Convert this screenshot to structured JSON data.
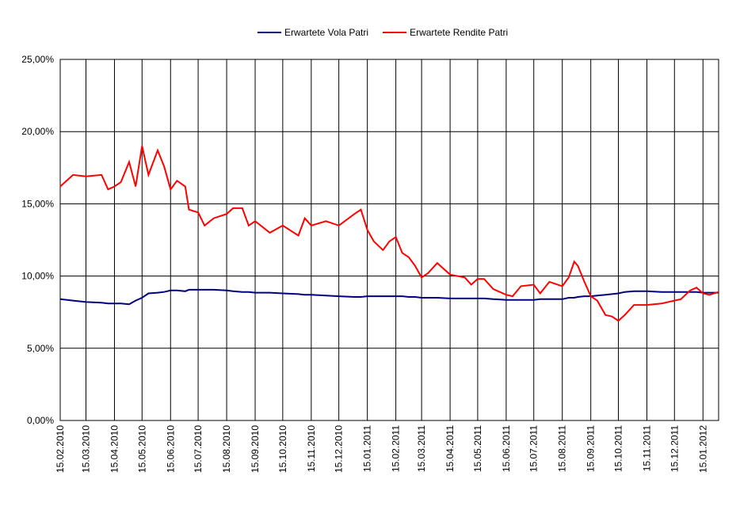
{
  "chart_data": {
    "type": "line",
    "x": [
      "15.02.2010",
      "01.03.2010",
      "15.03.2010",
      "01.04.2010",
      "08.04.2010",
      "15.04.2010",
      "22.04.2010",
      "01.05.2010",
      "08.05.2010",
      "15.05.2010",
      "22.05.2010",
      "01.06.2010",
      "08.06.2010",
      "15.06.2010",
      "22.06.2010",
      "01.07.2010",
      "05.07.2010",
      "15.07.2010",
      "22.07.2010",
      "01.08.2010",
      "15.08.2010",
      "22.08.2010",
      "01.09.2010",
      "08.09.2010",
      "15.09.2010",
      "01.10.2010",
      "15.10.2010",
      "01.11.2010",
      "08.11.2010",
      "15.11.2010",
      "01.12.2010",
      "15.12.2010",
      "01.01.2011",
      "08.01.2011",
      "15.01.2011",
      "22.01.2011",
      "01.02.2011",
      "08.02.2011",
      "15.02.2011",
      "22.02.2011",
      "01.03.2011",
      "08.03.2011",
      "15.03.2011",
      "22.03.2011",
      "01.04.2011",
      "15.04.2011",
      "01.05.2011",
      "08.05.2011",
      "15.05.2011",
      "22.05.2011",
      "01.06.2011",
      "15.06.2011",
      "22.06.2011",
      "01.07.2011",
      "15.07.2011",
      "22.07.2011",
      "01.08.2011",
      "15.08.2011",
      "22.08.2011",
      "28.08.2011",
      "01.09.2011",
      "08.09.2011",
      "15.09.2011",
      "22.09.2011",
      "01.10.2011",
      "08.10.2011",
      "15.10.2011",
      "22.10.2011",
      "01.11.2011",
      "15.11.2011",
      "01.12.2011",
      "15.12.2011",
      "22.12.2011",
      "01.01.2012",
      "08.01.2012",
      "15.01.2012",
      "22.01.2012",
      "01.02.2012"
    ],
    "series": [
      {
        "name": "Erwartete Vola Patri",
        "color": "#000080",
        "values": [
          8.4,
          8.3,
          8.2,
          8.15,
          8.1,
          8.1,
          8.1,
          8.05,
          8.3,
          8.5,
          8.8,
          8.85,
          8.9,
          9.0,
          9.0,
          8.95,
          9.05,
          9.05,
          9.05,
          9.05,
          9.0,
          8.95,
          8.9,
          8.9,
          8.85,
          8.85,
          8.8,
          8.75,
          8.7,
          8.7,
          8.65,
          8.6,
          8.55,
          8.55,
          8.6,
          8.6,
          8.6,
          8.6,
          8.6,
          8.6,
          8.55,
          8.55,
          8.5,
          8.5,
          8.5,
          8.45,
          8.45,
          8.45,
          8.45,
          8.45,
          8.4,
          8.35,
          8.35,
          8.35,
          8.35,
          8.4,
          8.4,
          8.4,
          8.5,
          8.5,
          8.55,
          8.6,
          8.6,
          8.65,
          8.7,
          8.75,
          8.8,
          8.9,
          8.95,
          8.95,
          8.9,
          8.9,
          8.9,
          8.9,
          8.9,
          8.85,
          8.85,
          8.85
        ]
      },
      {
        "name": "Erwartete Rendite Patri",
        "color": "#ff0000",
        "values": [
          16.2,
          17.0,
          16.9,
          17.0,
          16.0,
          16.2,
          16.5,
          17.9,
          16.2,
          19.0,
          17.0,
          18.7,
          17.6,
          16.0,
          16.6,
          16.2,
          14.6,
          14.4,
          13.5,
          14.0,
          14.3,
          14.7,
          14.7,
          13.5,
          13.8,
          13.0,
          13.5,
          12.8,
          14.0,
          13.5,
          13.8,
          13.5,
          14.3,
          14.6,
          13.2,
          12.4,
          11.8,
          12.4,
          12.7,
          11.6,
          11.3,
          10.7,
          9.9,
          10.2,
          10.9,
          10.1,
          9.9,
          9.4,
          9.8,
          9.8,
          9.1,
          8.7,
          8.6,
          9.3,
          9.4,
          8.8,
          9.6,
          9.3,
          9.9,
          11.0,
          10.7,
          9.6,
          8.6,
          8.3,
          7.3,
          7.2,
          6.9,
          7.3,
          8.0,
          8.0,
          8.1,
          8.3,
          8.4,
          9.0,
          9.2,
          8.8,
          8.7,
          8.9
        ]
      }
    ],
    "xlim": [
      "15.02.2010",
      "01.02.2012"
    ],
    "xticks": [
      "15.02.2010",
      "15.03.2010",
      "15.04.2010",
      "15.05.2010",
      "15.06.2010",
      "15.07.2010",
      "15.08.2010",
      "15.09.2010",
      "15.10.2010",
      "15.11.2010",
      "15.12.2010",
      "15.01.2011",
      "15.02.2011",
      "15.03.2011",
      "15.04.2011",
      "15.05.2011",
      "15.06.2011",
      "15.07.2011",
      "15.08.2011",
      "15.09.2011",
      "15.10.2011",
      "15.11.2011",
      "15.12.2011",
      "15.01.2012"
    ],
    "ylim": [
      0,
      25
    ],
    "yticks": [
      {
        "value": 0,
        "label": "0,00%"
      },
      {
        "value": 5,
        "label": "5,00%"
      },
      {
        "value": 10,
        "label": "10,00%"
      },
      {
        "value": 15,
        "label": "15,00%"
      },
      {
        "value": 20,
        "label": "20,00%"
      },
      {
        "value": 25,
        "label": "25,00%"
      }
    ],
    "grid": true,
    "legend": "top"
  }
}
